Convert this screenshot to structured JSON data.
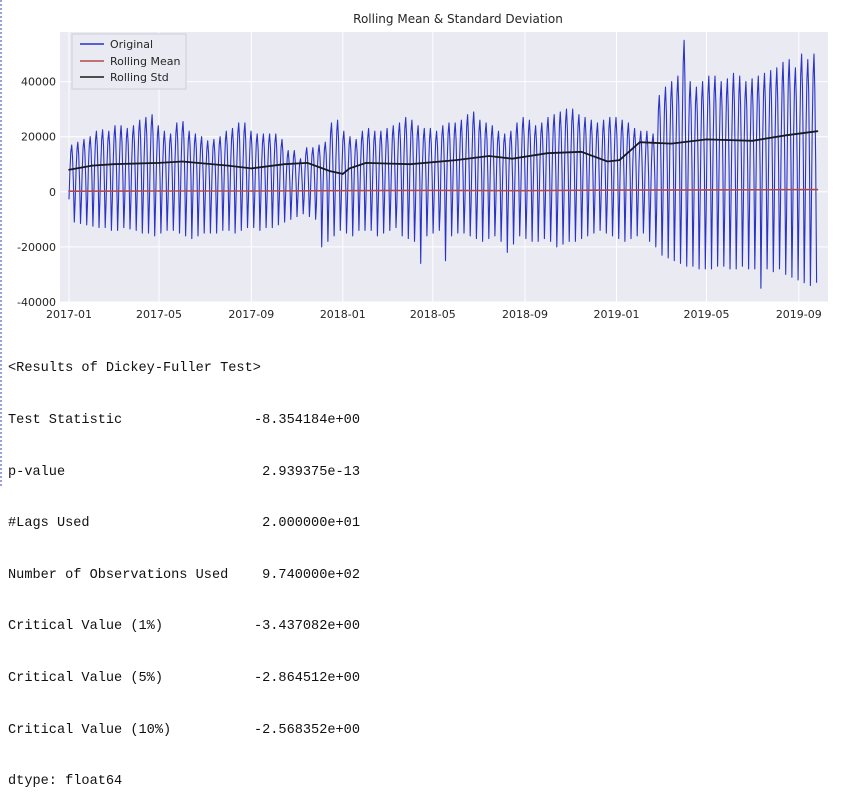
{
  "chart_data": {
    "type": "line",
    "title": "Rolling Mean & Standard Deviation",
    "xlabel": "",
    "ylabel": "",
    "x_range": [
      "2016-12-20",
      "2019-10-10"
    ],
    "ylim": [
      -40000,
      58000
    ],
    "grid": true,
    "legend_position": "top-left",
    "xticks": [
      "2017-01",
      "2017-05",
      "2017-09",
      "2018-01",
      "2018-05",
      "2018-09",
      "2019-01",
      "2019-05",
      "2019-09"
    ],
    "yticks": [
      -40000,
      -20000,
      0,
      20000,
      40000
    ],
    "series": [
      {
        "name": "Original",
        "color": "#2a33c8",
        "cycle_peaks": [
          17000,
          18000,
          19000,
          20000,
          22000,
          22500,
          22000,
          24000,
          24000,
          23000,
          24000,
          26000,
          27000,
          28000,
          24000,
          22000,
          21000,
          25000,
          25500,
          22000,
          21000,
          20000,
          18500,
          19000,
          20000,
          22000,
          23000,
          25000,
          25000,
          22000,
          21000,
          21000,
          21000,
          21000,
          19000,
          15000,
          15000,
          12000,
          16000,
          16000,
          17000,
          18000,
          25000,
          26000,
          22000,
          20000,
          19000,
          22000,
          23000,
          22000,
          22000,
          23000,
          24000,
          25000,
          27000,
          26000,
          24000,
          23000,
          23000,
          22000,
          24000,
          25000,
          25000,
          26000,
          28000,
          29000,
          26000,
          25000,
          24000,
          22000,
          21000,
          22000,
          25000,
          27000,
          26000,
          24000,
          25000,
          27000,
          28000,
          29000,
          30000,
          30000,
          28000,
          27000,
          26000,
          25000,
          26000,
          27000,
          27000,
          26000,
          25000,
          23000,
          22000,
          22000,
          21000,
          35000,
          38000,
          40000,
          42000,
          55000,
          40000,
          38000,
          40000,
          42000,
          42000,
          40000,
          41000,
          43000,
          42000,
          40000,
          41000,
          42000,
          43000,
          44000,
          45000,
          47000,
          48000,
          45000,
          50000,
          48000,
          50000
        ],
        "cycle_troughs": [
          -11000,
          -11500,
          -12000,
          -12500,
          -13000,
          -13000,
          -14000,
          -14000,
          -13000,
          -13500,
          -14000,
          -15000,
          -15000,
          -16000,
          -15000,
          -14000,
          -14000,
          -15000,
          -16000,
          -17000,
          -16000,
          -15000,
          -15000,
          -15000,
          -14000,
          -14000,
          -15000,
          -14000,
          -13000,
          -13000,
          -14000,
          -13000,
          -13000,
          -12000,
          -11000,
          -10000,
          -9000,
          -8000,
          -9000,
          -10000,
          -20000,
          -18000,
          -16000,
          -14000,
          -15000,
          -16000,
          -14000,
          -14000,
          -14000,
          -16000,
          -15000,
          -14000,
          -13000,
          -16000,
          -17000,
          -18000,
          -26000,
          -16000,
          -15000,
          -14000,
          -25000,
          -16000,
          -15000,
          -15000,
          -16000,
          -17000,
          -18000,
          -17000,
          -16000,
          -18000,
          -22000,
          -19000,
          -16000,
          -17000,
          -18000,
          -18000,
          -17000,
          -18000,
          -20000,
          -19000,
          -18000,
          -18000,
          -17000,
          -16000,
          -15000,
          -14000,
          -15000,
          -16000,
          -17000,
          -18000,
          -17000,
          -16000,
          -15000,
          -18000,
          -20000,
          -23000,
          -24000,
          -25000,
          -26000,
          -27000,
          -27000,
          -28000,
          -28000,
          -28000,
          -27000,
          -27000,
          -28000,
          -28000,
          -27000,
          -28000,
          -28000,
          -35000,
          -28000,
          -29000,
          -28000,
          -30000,
          -31000,
          -32000,
          -33000,
          -34000,
          -33000
        ]
      },
      {
        "name": "Rolling Mean",
        "color": "#b04a4a",
        "values": [
          [
            "2017-01-01",
            200
          ],
          [
            "2017-05-01",
            300
          ],
          [
            "2017-09-01",
            300
          ],
          [
            "2018-01-01",
            400
          ],
          [
            "2018-05-01",
            500
          ],
          [
            "2018-09-01",
            400
          ],
          [
            "2019-01-01",
            600
          ],
          [
            "2019-05-01",
            700
          ],
          [
            "2019-09-26",
            800
          ]
        ]
      },
      {
        "name": "Rolling Std",
        "color": "#1a1a1a",
        "values": [
          [
            "2017-01-01",
            8000
          ],
          [
            "2017-02-01",
            9500
          ],
          [
            "2017-03-01",
            10000
          ],
          [
            "2017-05-01",
            10500
          ],
          [
            "2017-06-01",
            11000
          ],
          [
            "2017-08-01",
            9500
          ],
          [
            "2017-09-01",
            8500
          ],
          [
            "2017-10-15",
            10000
          ],
          [
            "2017-11-15",
            10500
          ],
          [
            "2017-12-15",
            7500
          ],
          [
            "2018-01-01",
            6500
          ],
          [
            "2018-01-10",
            8500
          ],
          [
            "2018-02-01",
            10500
          ],
          [
            "2018-04-01",
            10000
          ],
          [
            "2018-06-01",
            11500
          ],
          [
            "2018-07-15",
            13000
          ],
          [
            "2018-08-15",
            12000
          ],
          [
            "2018-10-01",
            14000
          ],
          [
            "2018-11-15",
            14500
          ],
          [
            "2018-12-20",
            11000
          ],
          [
            "2019-01-05",
            11500
          ],
          [
            "2019-02-01",
            18000
          ],
          [
            "2019-03-15",
            17500
          ],
          [
            "2019-05-01",
            19000
          ],
          [
            "2019-07-01",
            18500
          ],
          [
            "2019-08-15",
            20500
          ],
          [
            "2019-09-26",
            22000
          ]
        ]
      }
    ]
  },
  "results": {
    "header": "<Results of Dickey-Fuller Test>",
    "rows": [
      {
        "label": "Test Statistic",
        "value": "-8.354184e+00"
      },
      {
        "label": "p-value",
        "value": "2.939375e-13"
      },
      {
        "label": "#Lags Used",
        "value": "2.000000e+01"
      },
      {
        "label": "Number of Observations Used",
        "value": "9.740000e+02"
      },
      {
        "label": "Critical Value (1%)",
        "value": "-3.437082e+00"
      },
      {
        "label": "Critical Value (5%)",
        "value": "-2.864512e+00"
      },
      {
        "label": "Critical Value (10%)",
        "value": "-2.568352e+00"
      }
    ],
    "dtype": "dtype: float64"
  },
  "colors": {
    "plot_background": "#eaeaf2",
    "grid": "#ffffff",
    "text": "#262626"
  }
}
